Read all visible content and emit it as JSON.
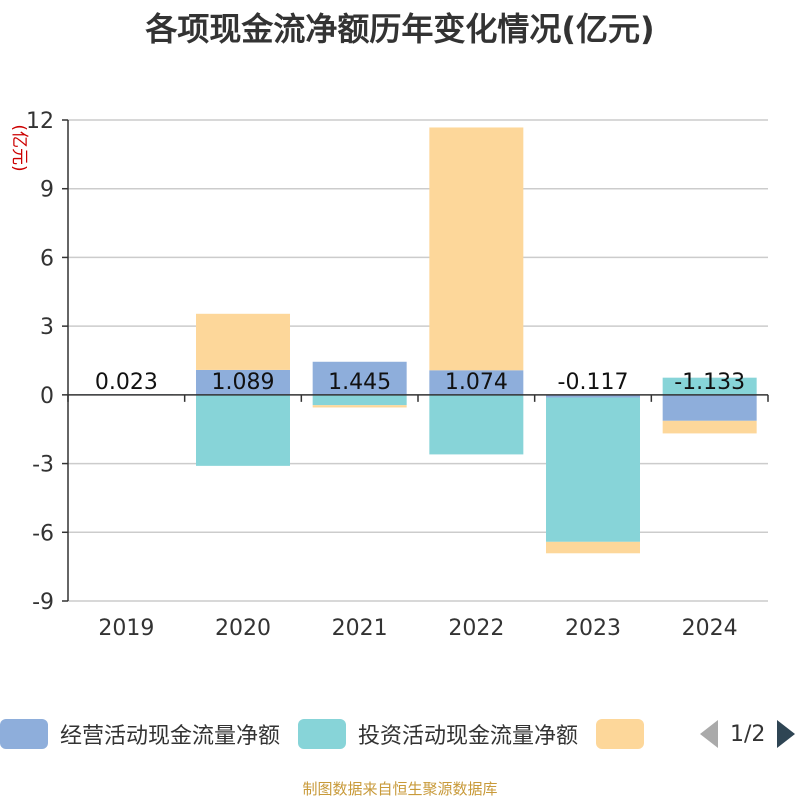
{
  "chart_data": {
    "type": "bar",
    "stacked": true,
    "title": "各项现金流净额历年变化情况(亿元)",
    "ylabel": "(亿元)",
    "xlabel": "",
    "ylim": [
      -9,
      12
    ],
    "yticks": [
      12,
      9,
      6,
      3,
      0,
      -3,
      -6,
      -9
    ],
    "categories": [
      "2019",
      "2020",
      "2021",
      "2022",
      "2023",
      "2024"
    ],
    "grid": true,
    "legend_position": "bottom",
    "series": [
      {
        "name": "经营活动现金流量净额",
        "color": "#8eaedb",
        "values": [
          0.023,
          1.089,
          1.445,
          1.074,
          -0.117,
          -1.133
        ]
      },
      {
        "name": "投资活动现金流量净额",
        "color": "#87d4d8",
        "values": [
          0.0,
          -3.1,
          -0.45,
          -2.6,
          -6.3,
          0.75
        ]
      },
      {
        "name": "",
        "color": "#fdd79a",
        "values": [
          0.0,
          2.45,
          -0.1,
          10.6,
          -0.5,
          -0.55
        ]
      }
    ],
    "data_labels": [
      "0.023",
      "1.089",
      "1.445",
      "1.074",
      "-0.117",
      "-1.133"
    ]
  },
  "legend": {
    "items": [
      "经营活动现金流量净额",
      "投资活动现金流量净额",
      ""
    ],
    "page_indicator": "1/2"
  },
  "source": "制图数据来自恒生聚源数据库"
}
